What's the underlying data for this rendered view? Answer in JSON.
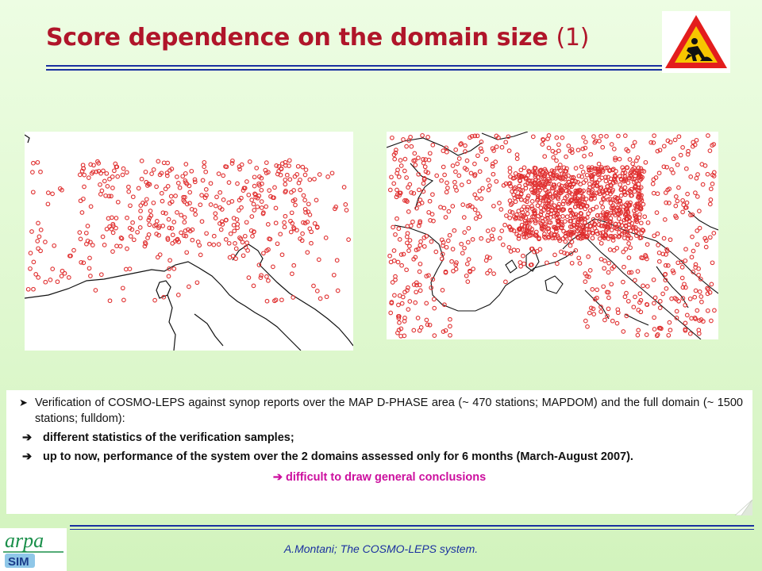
{
  "title": {
    "main": "Score dependence on the domain size",
    "number": "(1)"
  },
  "icons": {
    "warning": "road-works-warning-sign",
    "arrow": "right-arrow-icon",
    "bullet": "arrowhead-bullet-icon"
  },
  "maps": [
    {
      "name": "MAP D-PHASE area",
      "marker_color": "#e03030"
    },
    {
      "name": "full domain",
      "marker_color": "#e03030"
    }
  ],
  "text": {
    "bullet1": "Verification of COSMO-LEPS against synop reports over the MAP D-PHASE area (~ 470 stations; MAPDOM) and the full domain (~ 1500 stations; fulldom):",
    "point1": "different statistics of the verification samples;",
    "point2": "up to now, performance of the system over the 2 domains assessed only for 6 months (March-August 2007).",
    "conclusion": "difficult to draw general conclusions"
  },
  "logo": {
    "top": "arpa",
    "bottom": "SIM"
  },
  "footer": "A.Montani; The COSMO-LEPS system.",
  "colors": {
    "title": "#b0152a",
    "rule": "#1a30a0",
    "conclusion": "#cc0f9e",
    "background": "#e6fbd8"
  }
}
